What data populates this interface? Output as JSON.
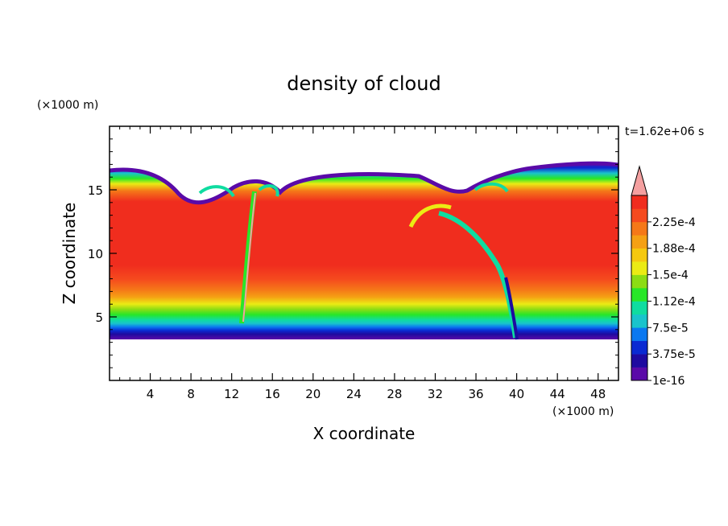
{
  "chart_data": {
    "type": "heatmap",
    "title": "density of cloud",
    "xlabel": "X coordinate",
    "ylabel": "Z coordinate",
    "x_unit": "(×1000 m)",
    "y_unit": "(×1000 m)",
    "time_label": "t=1.62e+06 s",
    "xlim": [
      0,
      50
    ],
    "ylim": [
      0,
      20
    ],
    "x_ticks": [
      4,
      8,
      12,
      16,
      20,
      24,
      28,
      32,
      36,
      40,
      44,
      48
    ],
    "y_ticks": [
      5,
      10,
      15
    ],
    "x_tick_labels": [
      "4",
      "8",
      "12",
      "16",
      "20",
      "24",
      "28",
      "32",
      "36",
      "40",
      "44",
      "48"
    ],
    "y_tick_labels": [
      "5",
      "10",
      "15"
    ],
    "colorbar": {
      "levels": [
        "1e-16",
        "3.75e-5",
        "7.5e-5",
        "1.12e-4",
        "1.5e-4",
        "1.88e-4",
        "2.25e-4"
      ],
      "colors": [
        "#5a0aa8",
        "#1e0aa0",
        "#0a2ad2",
        "#0a78f0",
        "#19c3cc",
        "#0fdca0",
        "#28e628",
        "#8cdc14",
        "#ebeb14",
        "#f5c80f",
        "#f5a014",
        "#f57818",
        "#f54a1e",
        "#f02d1e",
        "#f4a0a0"
      ],
      "extend": "max"
    },
    "cloud_layer": {
      "base_km": 3.5,
      "top_km_approx": 16.5,
      "core_value_approx": 0.00024,
      "features": [
        {
          "x_km": 13.5,
          "description": "narrow updraft column"
        },
        {
          "x_km": 39.5,
          "description": "narrow updraft column"
        }
      ]
    }
  }
}
